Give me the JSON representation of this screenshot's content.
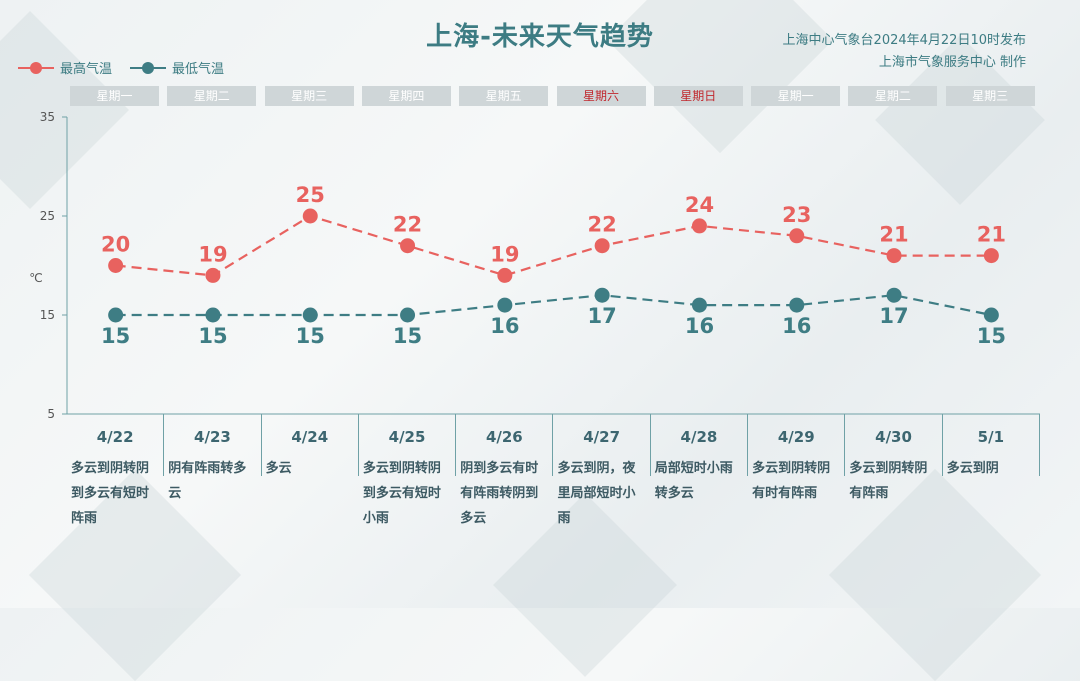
{
  "title": "上海-未来天气趋势",
  "source": {
    "line1": "上海中心气象台2024年4月22日10时发布",
    "line2": "上海市气象服务中心 制作"
  },
  "legend": {
    "high": "最高气温",
    "low": "最低气温"
  },
  "colors": {
    "high": "#e8625f",
    "low": "#3e7d84",
    "axis": "#6fa1a6",
    "weekend": "#c0272d"
  },
  "unit_label": "℃",
  "chart_data": {
    "type": "line",
    "categories": [
      "4/22",
      "4/23",
      "4/24",
      "4/25",
      "4/26",
      "4/27",
      "4/28",
      "4/29",
      "4/30",
      "5/1"
    ],
    "weekdays": [
      "星期一",
      "星期二",
      "星期三",
      "星期四",
      "星期五",
      "星期六",
      "星期日",
      "星期一",
      "星期二",
      "星期三"
    ],
    "weekend_flags": [
      false,
      false,
      false,
      false,
      false,
      true,
      true,
      false,
      false,
      false
    ],
    "series": [
      {
        "name": "最高气温",
        "values": [
          20,
          19,
          25,
          22,
          19,
          22,
          24,
          23,
          21,
          21
        ]
      },
      {
        "name": "最低气温",
        "values": [
          15,
          15,
          15,
          15,
          16,
          17,
          16,
          16,
          17,
          15
        ]
      }
    ],
    "yticks": [
      35,
      25,
      15,
      5
    ],
    "ylim": [
      5,
      35
    ],
    "weather": [
      "多云到阴转阴到多云有短时阵雨",
      "阴有阵雨转多云",
      "多云",
      "多云到阴转阴到多云有短时小雨",
      "阴到多云有时有阵雨转阴到多云",
      "多云到阴，夜里局部短时小雨",
      "局部短时小雨转多云",
      "多云到阴转阴有时有阵雨",
      "多云到阴转阴有阵雨",
      "多云到阴"
    ]
  }
}
